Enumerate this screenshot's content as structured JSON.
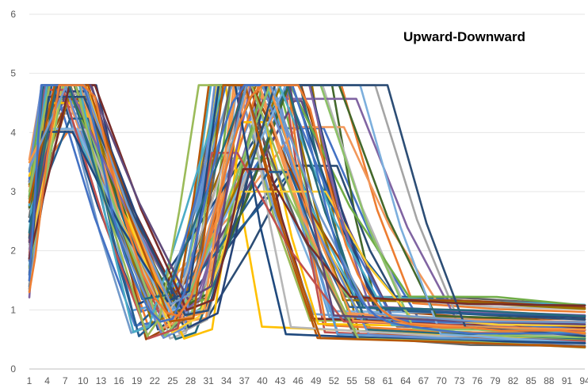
{
  "chart_data": {
    "type": "line",
    "title": "Upward-Downward",
    "xlabel": "",
    "ylabel": "",
    "ylim": [
      0,
      6
    ],
    "xlim": [
      1,
      94
    ],
    "y_ticks": [
      "0",
      "1",
      "2",
      "3",
      "4",
      "5",
      "6"
    ],
    "x_ticks": [
      "1",
      "4",
      "7",
      "10",
      "13",
      "16",
      "19",
      "22",
      "25",
      "28",
      "31",
      "34",
      "37",
      "40",
      "43",
      "46",
      "49",
      "52",
      "55",
      "58",
      "61",
      "64",
      "67",
      "70",
      "73",
      "76",
      "79",
      "82",
      "85",
      "88",
      "91",
      "94"
    ],
    "grid": true,
    "legend": "none",
    "series_palette": [
      "#4472c4",
      "#ed7d31",
      "#a5a5a5",
      "#ffc000",
      "#5b9bd5",
      "#70ad47",
      "#264478",
      "#9e480e",
      "#636363",
      "#997300",
      "#255e91",
      "#43682b",
      "#698ed0",
      "#f1975a",
      "#b7b7b7",
      "#ffcd33",
      "#7cafdd",
      "#8cc168",
      "#c0504d",
      "#8064a2",
      "#4bacc6",
      "#f79646",
      "#1f497d",
      "#9bbb59",
      "#2c4d75",
      "#772c2a",
      "#5f497a",
      "#276a7c",
      "#b65708",
      "#729aca"
    ],
    "series_shape_note": "shape",
    "series": [
      {
        "x": [
          1,
          2,
          3,
          5,
          7,
          9,
          10,
          11,
          13,
          15,
          17,
          19,
          21,
          23,
          25,
          27,
          29,
          31,
          33,
          35,
          37,
          39,
          41,
          43,
          45,
          47,
          49,
          51,
          53,
          55,
          57,
          59,
          61,
          63,
          66,
          70,
          75,
          80,
          85,
          90,
          94
        ],
        "values": [
          1.5,
          3.0,
          4.8,
          4.8,
          4.8,
          4.8,
          4.8,
          4.5,
          3.6,
          2.6,
          1.9,
          1.4,
          1.0,
          0.8,
          0.85,
          1.3,
          2.2,
          3.1,
          3.9,
          4.5,
          4.8,
          4.8,
          4.8,
          4.8,
          4.8,
          4.2,
          3.4,
          2.6,
          1.9,
          1.4,
          1.1,
          0.9,
          0.8,
          0.75,
          0.7,
          0.65,
          0.6,
          0.6,
          0.6,
          0.6,
          0.6
        ]
      },
      {
        "x": [
          1,
          2,
          4,
          6,
          8,
          10,
          12,
          14,
          16,
          18,
          20,
          22,
          24,
          26,
          28,
          30,
          32,
          34,
          36,
          38,
          40,
          42,
          44,
          46,
          48,
          50,
          52,
          54,
          56,
          58,
          60,
          62,
          65,
          70,
          75,
          80,
          85,
          90,
          94
        ],
        "values": [
          1.3,
          1.9,
          3.6,
          4.8,
          4.8,
          4.8,
          4.6,
          3.7,
          2.9,
          2.2,
          1.6,
          1.2,
          0.95,
          0.9,
          1.2,
          1.8,
          2.6,
          3.4,
          4.1,
          4.6,
          4.8,
          4.8,
          4.8,
          4.8,
          4.4,
          3.6,
          2.8,
          2.1,
          1.6,
          1.25,
          1.0,
          0.85,
          0.75,
          0.7,
          0.7,
          0.65,
          0.65,
          0.65,
          0.6
        ]
      }
    ]
  }
}
